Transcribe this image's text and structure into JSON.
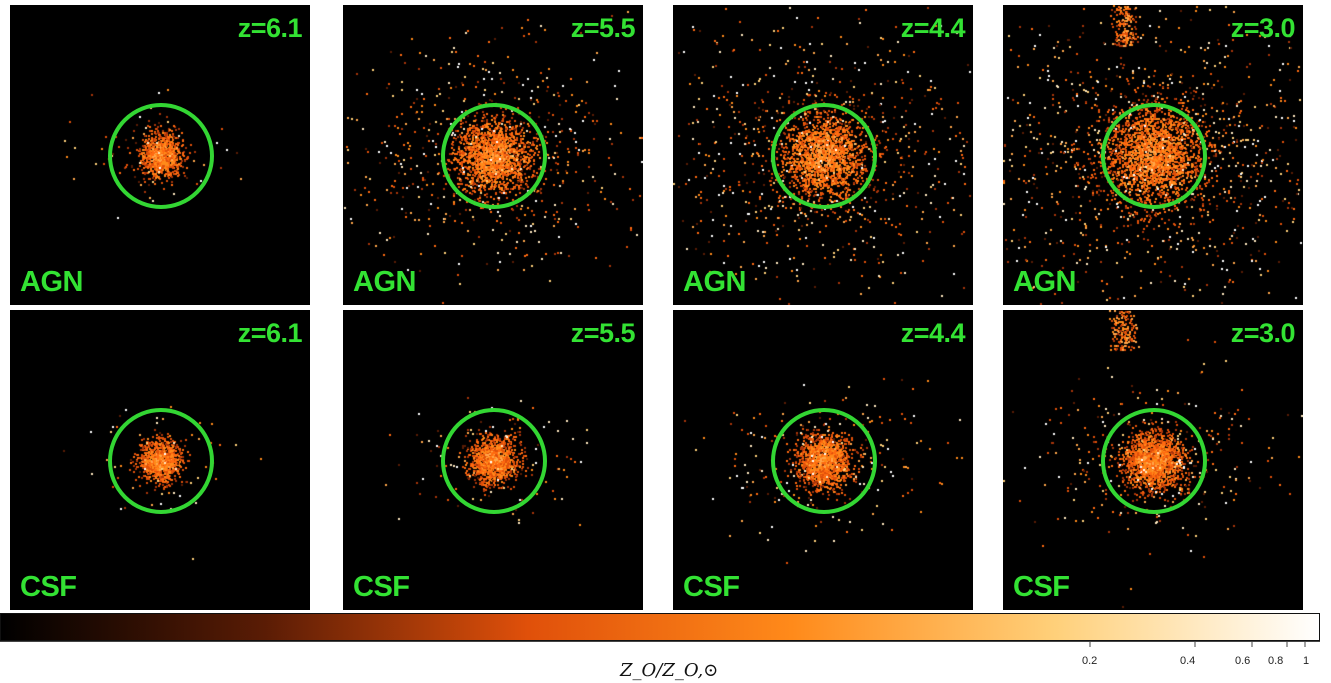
{
  "panels": [
    {
      "model": "AGN",
      "redshift": "z=6.1",
      "spread": 0.15,
      "density": 0.35
    },
    {
      "model": "AGN",
      "redshift": "z=5.5",
      "spread": 0.55,
      "density": 0.75
    },
    {
      "model": "AGN",
      "redshift": "z=4.4",
      "spread": 0.7,
      "density": 0.8
    },
    {
      "model": "AGN",
      "redshift": "z=3.0",
      "spread": 0.85,
      "density": 1.0
    },
    {
      "model": "CSF",
      "redshift": "z=6.1",
      "spread": 0.15,
      "density": 0.3
    },
    {
      "model": "CSF",
      "redshift": "z=5.5",
      "spread": 0.2,
      "density": 0.45
    },
    {
      "model": "CSF",
      "redshift": "z=4.4",
      "spread": 0.28,
      "density": 0.6
    },
    {
      "model": "CSF",
      "redshift": "z=3.0",
      "spread": 0.32,
      "density": 0.75
    }
  ],
  "colorbar": {
    "label": "Z_O/Z_O,⊙",
    "ticks": [
      "0.2",
      "0.4",
      "0.6",
      "0.8",
      "1"
    ],
    "colors": [
      "#000000",
      "#5a1c05",
      "#e0500a",
      "#ff8a1a",
      "#ffd07a",
      "#ffffff"
    ]
  },
  "colors": {
    "label_green": "#33e233",
    "ring_green": "#33d633"
  }
}
